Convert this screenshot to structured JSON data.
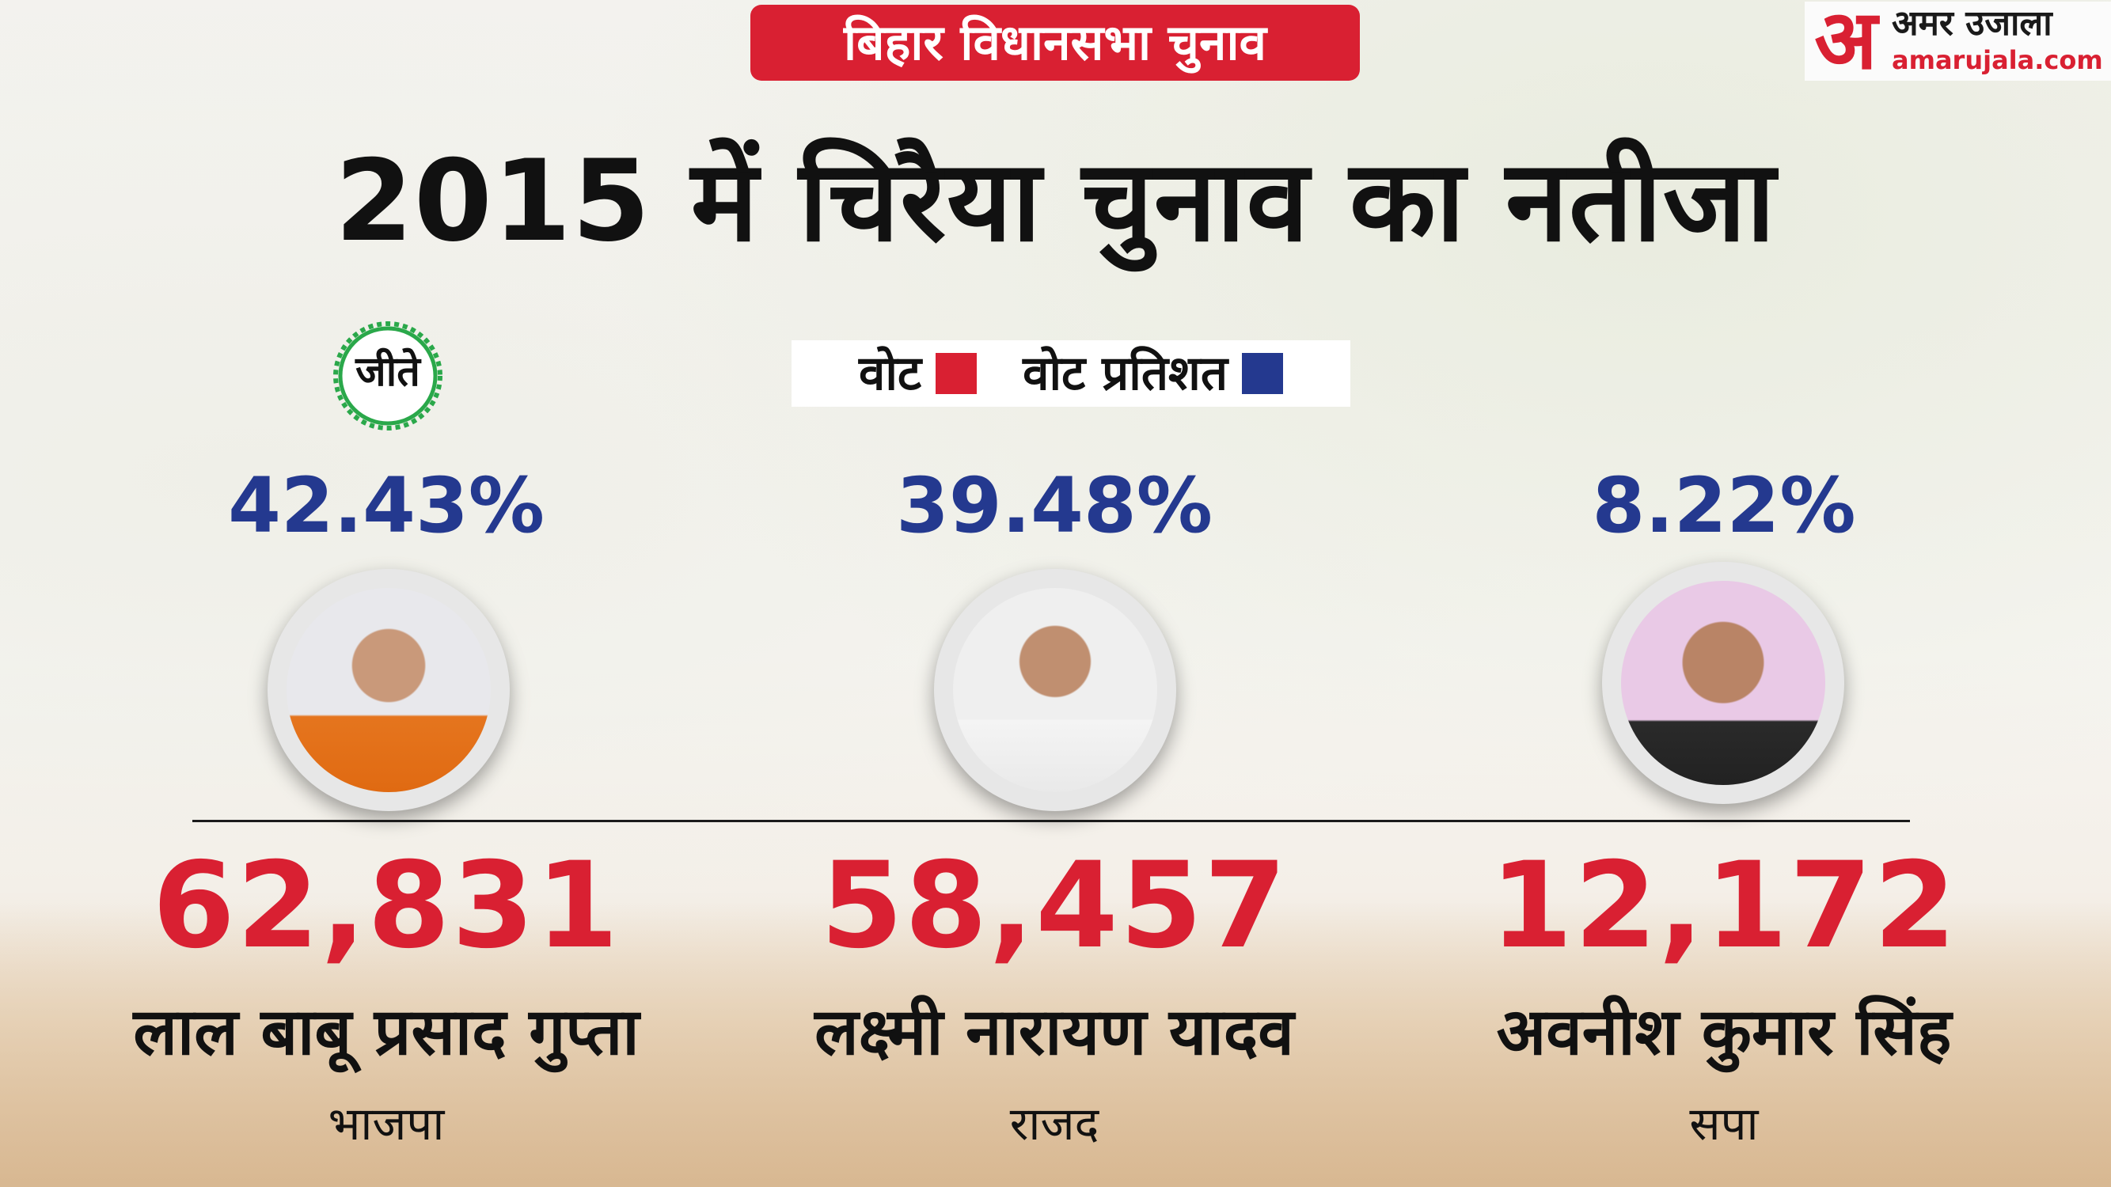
{
  "header": {
    "tag": "बिहार विधानसभा चुनाव",
    "title": "2015 में चिरैया चुनाव का नतीजा"
  },
  "logo": {
    "mark": "अ",
    "name": "अमर उजाला",
    "url": "amarujala.com"
  },
  "legend": {
    "votes_label": "वोट",
    "percent_label": "वोट प्रतिशत",
    "votes_color": "#d92032",
    "percent_color": "#24398f"
  },
  "winner_badge": "जीते",
  "chart_data": {
    "type": "table",
    "title": "2015 में चिरैया चुनाव का नतीजा",
    "series": [
      {
        "name": "वोट",
        "values": [
          62831,
          58457,
          12172
        ]
      },
      {
        "name": "वोट प्रतिशत",
        "values": [
          42.43,
          39.48,
          8.22
        ]
      }
    ],
    "candidates": [
      {
        "name": "लाल बाबू प्रसाद गुप्ता",
        "party": "भाजपा",
        "votes": "62,831",
        "percent": "42.43%",
        "winner": true
      },
      {
        "name": "लक्ष्मी नारायण यादव",
        "party": "राजद",
        "votes": "58,457",
        "percent": "39.48%",
        "winner": false
      },
      {
        "name": "अवनीश कुमार सिंह",
        "party": "सपा",
        "votes": "12,172",
        "percent": "8.22%",
        "winner": false
      }
    ]
  }
}
